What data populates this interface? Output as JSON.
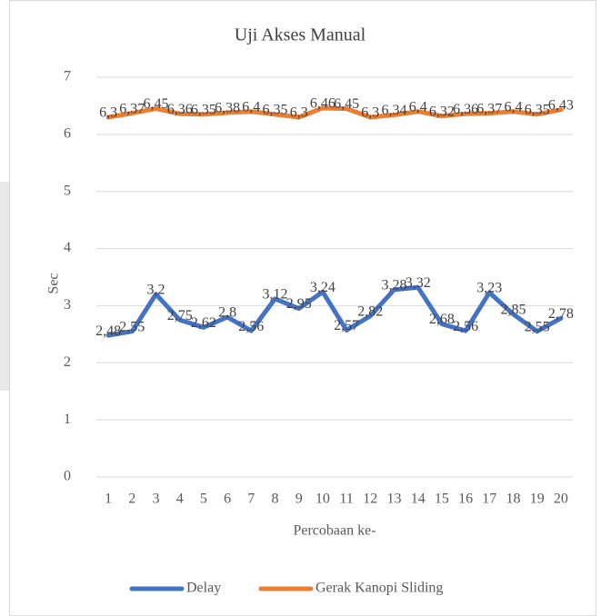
{
  "chart_data": {
    "type": "line",
    "title": "Uji Akses Manual",
    "x_label": "Percobaan ke-",
    "y_label": "Sec",
    "categories": [
      "1",
      "2",
      "3",
      "4",
      "5",
      "6",
      "7",
      "8",
      "9",
      "10",
      "11",
      "12",
      "13",
      "14",
      "15",
      "16",
      "17",
      "18",
      "19",
      "20"
    ],
    "series": [
      {
        "name": "Delay",
        "color": "#4472c4",
        "values": [
          2.48,
          2.55,
          3.2,
          2.75,
          2.62,
          2.8,
          2.56,
          3.12,
          2.95,
          3.24,
          2.57,
          2.82,
          3.28,
          3.32,
          2.68,
          2.56,
          3.23,
          2.85,
          2.55,
          2.78
        ],
        "value_labels": [
          "2,48",
          "2,55",
          "3,2",
          "2,75",
          "2,62",
          "2,8",
          "2,56",
          "3,12",
          "2,95",
          "3,24",
          "2,57",
          "2,82",
          "3,28",
          "3,32",
          "2,68",
          "2,56",
          "3,23",
          "2,85",
          "2,55",
          "2,78"
        ]
      },
      {
        "name": "Gerak Kanopi Sliding",
        "color": "#ed7d31",
        "values": [
          6.3,
          6.37,
          6.45,
          6.36,
          6.35,
          6.38,
          6.4,
          6.35,
          6.3,
          6.46,
          6.45,
          6.3,
          6.34,
          6.4,
          6.32,
          6.36,
          6.37,
          6.4,
          6.35,
          6.43
        ],
        "value_labels": [
          "6,3",
          "6,37",
          "6,45",
          "6,36",
          "6,35",
          "6,38",
          "6,4",
          "6,35",
          "6,3",
          "6,46",
          "6,45",
          "6,3",
          "6,34",
          "6,4",
          "6,32",
          "6,36",
          "6,37",
          "6,4",
          "6,35",
          "6,43"
        ]
      }
    ],
    "ylim": [
      0,
      7
    ],
    "yticks": [
      0,
      1,
      2,
      3,
      4,
      5,
      6,
      7
    ],
    "grid": true,
    "legend": "bottom"
  }
}
